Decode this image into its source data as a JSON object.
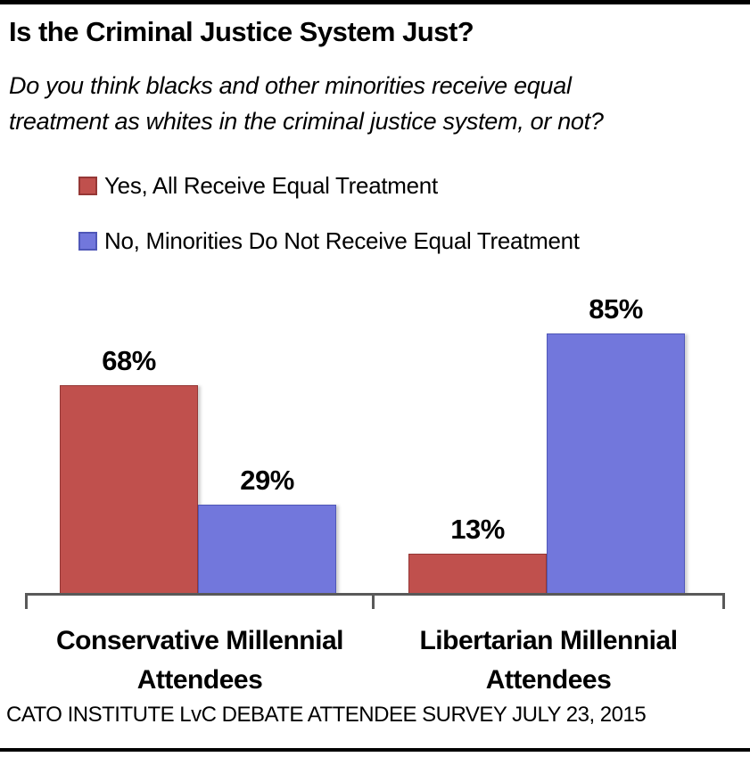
{
  "page": {
    "title": "Is the Criminal Justice System Just?",
    "subtitle_lines": [
      "Do you think blacks and other minorities receive equal",
      "treatment as whites in the criminal justice system, or not?"
    ],
    "footer": "CATO INSTITUTE LvC DEBATE ATTENDEE SURVEY JULY 23, 2015"
  },
  "chart_data": {
    "type": "bar",
    "title": "Is the Criminal Justice System Just?",
    "subtitle": "Do you think blacks and other minorities receive equal treatment as whites in the criminal justice system, or not?",
    "categories": [
      "Conservative Millennial Attendees",
      "Libertarian Millennial Attendees"
    ],
    "series": [
      {
        "name": "Yes, All Receive Equal Treatment",
        "values": [
          68,
          13
        ],
        "color": "#C0504D",
        "border_color": "#953735"
      },
      {
        "name": "No, Minorities Do Not Receive Equal Treatment",
        "values": [
          29,
          85
        ],
        "color": "#7277DC",
        "border_color": "#4F57B8"
      }
    ],
    "value_suffix": "%",
    "ylim": [
      0,
      100
    ],
    "grid": false,
    "legend_position": "top-left",
    "value_labels": "above-bars",
    "source_note": "CATO INSTITUTE LvC DEBATE ATTENDEE SURVEY JULY 23, 2015"
  },
  "colors": {
    "axis": "#595959",
    "frame_border": "#000000",
    "text": "#000000"
  }
}
